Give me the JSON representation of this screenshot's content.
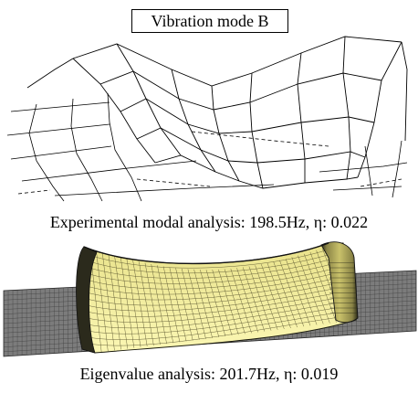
{
  "figure": {
    "title": "Vibration mode B",
    "captions": {
      "experimental": "Experimental modal analysis: 198.5Hz, η: 0.022",
      "eigenvalue": "Eigenvalue analysis: 201.7Hz, η: 0.019"
    },
    "colors": {
      "line": "#000000",
      "mesh_face": "#f4f0a2",
      "mesh_shadow": "#d6cf70",
      "ground": "#7c7c7c"
    }
  }
}
